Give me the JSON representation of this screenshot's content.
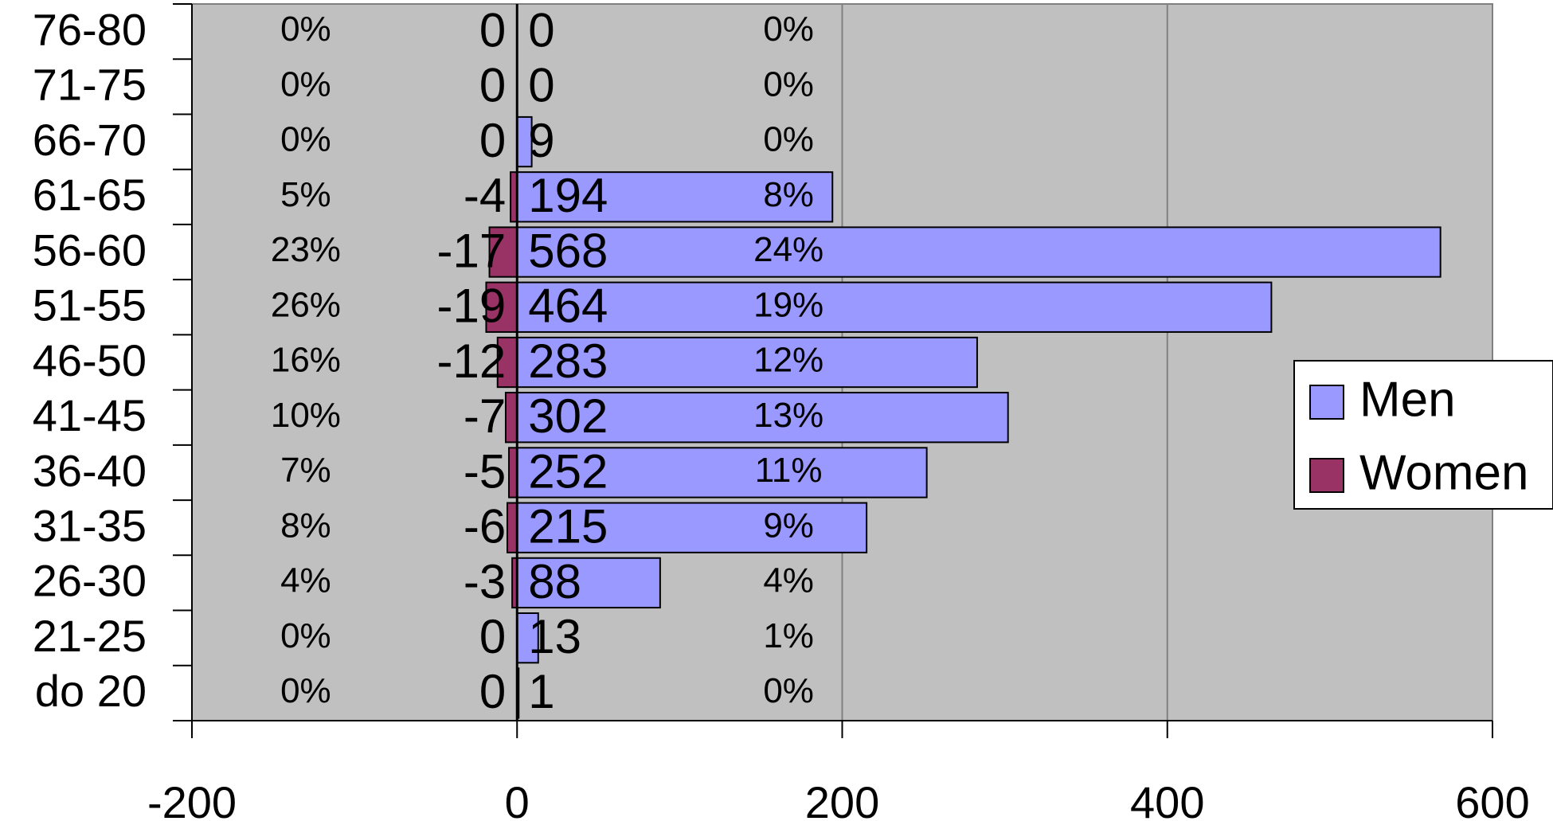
{
  "chart_data": {
    "type": "bar",
    "orientation": "horizontal",
    "categories": [
      "do 20",
      "21-25",
      "26-30",
      "31-35",
      "36-40",
      "41-45",
      "46-50",
      "51-55",
      "56-60",
      "61-65",
      "66-70",
      "71-75",
      "76-80"
    ],
    "series": [
      {
        "name": "Men",
        "color": "#9999ff",
        "values": [
          1,
          13,
          88,
          215,
          252,
          302,
          283,
          464,
          568,
          194,
          9,
          0,
          0
        ],
        "value_labels": [
          "1",
          "13",
          "88",
          "215",
          "252",
          "302",
          "283",
          "464",
          "568",
          "194",
          "9",
          "0",
          "0"
        ],
        "pct_labels": [
          "0%",
          "1%",
          "4%",
          "9%",
          "11%",
          "13%",
          "12%",
          "19%",
          "24%",
          "8%",
          "0%",
          "0%",
          "0%"
        ]
      },
      {
        "name": "Women",
        "color": "#993366",
        "values": [
          0,
          0,
          -3,
          -6,
          -5,
          -7,
          -12,
          -19,
          -17,
          -4,
          0,
          0,
          0
        ],
        "value_labels": [
          "0",
          "0",
          "-3",
          "-6",
          "-5",
          "-7",
          "-12",
          "-19",
          "-17",
          "-4",
          "0",
          "0",
          "0"
        ],
        "pct_labels": [
          "0%",
          "0%",
          "4%",
          "8%",
          "7%",
          "10%",
          "16%",
          "26%",
          "23%",
          "5%",
          "0%",
          "0%",
          "0%"
        ]
      }
    ],
    "xlim": [
      -200,
      600
    ],
    "x_ticks": [
      -200,
      0,
      200,
      400,
      600
    ],
    "x_tick_labels": [
      "-200",
      "0",
      "200",
      "400",
      "600"
    ],
    "plot_background": "#c0c0c0",
    "grid": "vertical",
    "legend": "right",
    "title": "",
    "xlabel": "",
    "ylabel": ""
  }
}
